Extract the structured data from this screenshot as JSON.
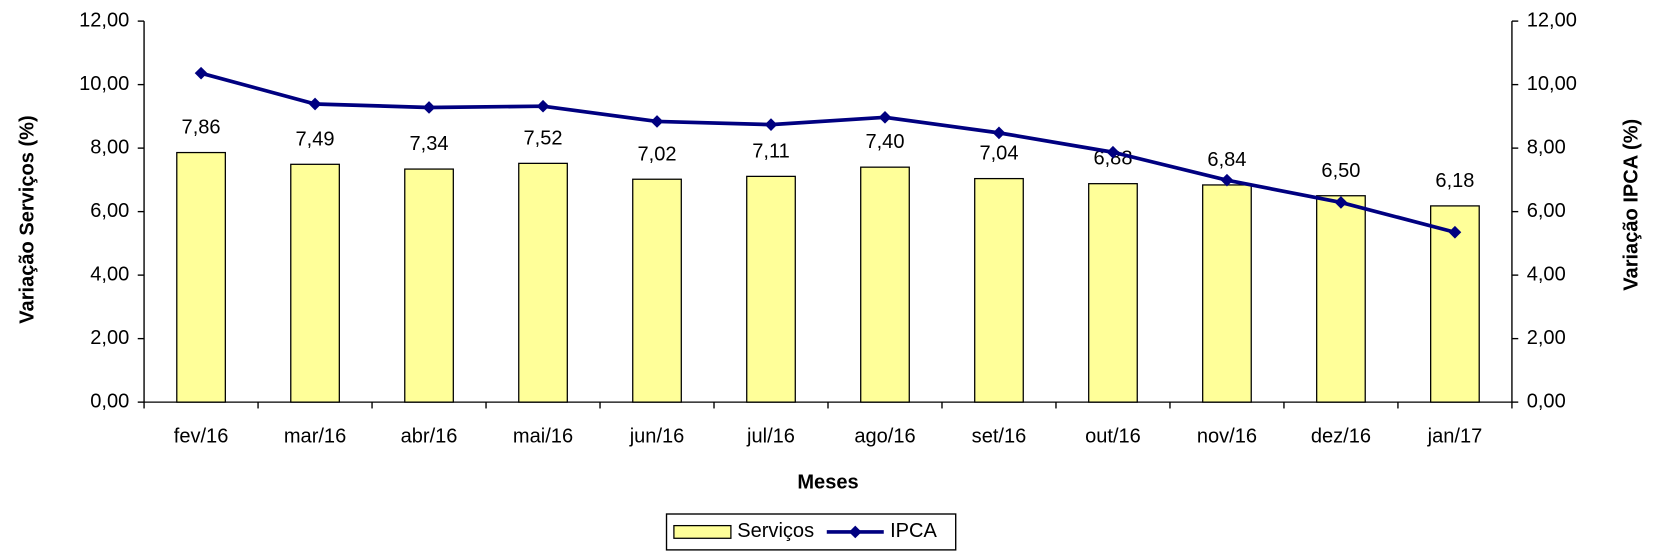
{
  "chart_data": {
    "type": "bar",
    "categories": [
      "fev/16",
      "mar/16",
      "abr/16",
      "mai/16",
      "jun/16",
      "jul/16",
      "ago/16",
      "set/16",
      "out/16",
      "nov/16",
      "dez/16",
      "jan/17"
    ],
    "series": [
      {
        "name": "Serviços",
        "color": "#ffff99",
        "type": "bar",
        "values": [
          7.86,
          7.49,
          7.34,
          7.52,
          7.02,
          7.11,
          7.4,
          7.04,
          6.88,
          6.84,
          6.5,
          6.18
        ],
        "value_labels": [
          "7,86",
          "7,49",
          "7,34",
          "7,52",
          "7,02",
          "7,11",
          "7,40",
          "7,04",
          "6,88",
          "6,84",
          "6,50",
          "6,18"
        ]
      },
      {
        "name": "IPCA",
        "color": "#000080",
        "type": "line",
        "axis": "y2",
        "values": [
          10.36,
          9.39,
          9.28,
          9.32,
          8.84,
          8.74,
          8.97,
          8.48,
          7.87,
          6.99,
          6.29,
          5.35
        ]
      }
    ],
    "xlabel": "Meses",
    "ylabel": "Variação Serviços (%)",
    "y2label": "Variação IPCA (%)",
    "ylim": [
      0,
      12
    ],
    "yticks": [
      {
        "value": 0,
        "label": "0,00"
      },
      {
        "value": 2,
        "label": "2,00"
      },
      {
        "value": 4,
        "label": "4,00"
      },
      {
        "value": 6,
        "label": "6,00"
      },
      {
        "value": 8,
        "label": "8,00"
      },
      {
        "value": 10,
        "label": "10,00"
      },
      {
        "value": 12,
        "label": "12,00"
      }
    ],
    "y2lim": [
      0,
      12
    ],
    "y2ticks": [
      {
        "value": 0,
        "label": "0,00"
      },
      {
        "value": 2,
        "label": "2,00"
      },
      {
        "value": 4,
        "label": "4,00"
      },
      {
        "value": 6,
        "label": "6,00"
      },
      {
        "value": 8,
        "label": "8,00"
      },
      {
        "value": 10,
        "label": "10,00"
      },
      {
        "value": 12,
        "label": "12,00"
      }
    ],
    "legend": "bottom"
  }
}
